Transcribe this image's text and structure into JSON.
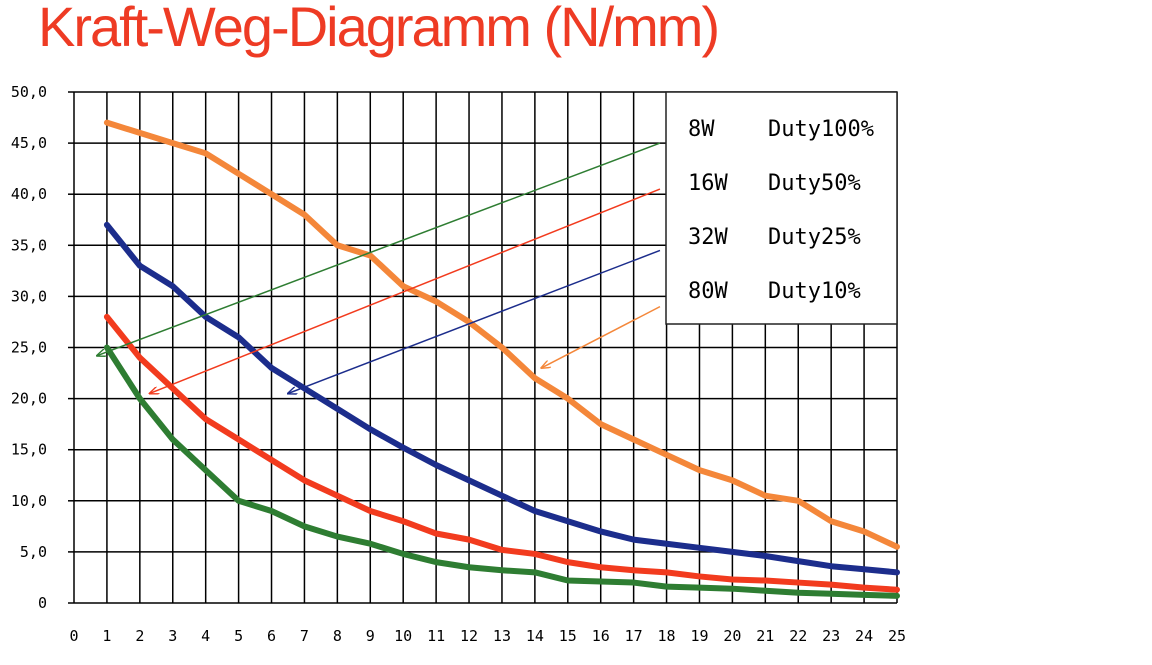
{
  "colors": {
    "title": "#ee3b24",
    "grid": "#000000",
    "series": [
      "#f4873a",
      "#1c2d8c",
      "#f23b1e",
      "#2e7d32"
    ],
    "arrows": [
      "#2e7d32",
      "#f23b1e",
      "#1c2d8c",
      "#f4873a"
    ]
  },
  "chart_data": {
    "type": "line",
    "title": "Kraft-Weg-Diagramm (N/mm)",
    "xlabel": "",
    "ylabel": "",
    "xlim": [
      0,
      25
    ],
    "ylim": [
      0,
      50
    ],
    "grid": true,
    "legend_position": "top-right",
    "x_ticks": [
      "0",
      "1",
      "2",
      "3",
      "4",
      "5",
      "6",
      "7",
      "8",
      "9",
      "10",
      "11",
      "12",
      "13",
      "14",
      "15",
      "16",
      "17",
      "18",
      "19",
      "20",
      "21",
      "22",
      "23",
      "24",
      "25"
    ],
    "y_ticks": [
      "0",
      "5,0",
      "10,0",
      "15,0",
      "20,0",
      "25,0",
      "30,0",
      "35,0",
      "40,0",
      "45,0",
      "50,0"
    ],
    "x": [
      1,
      2,
      3,
      4,
      5,
      6,
      7,
      8,
      9,
      10,
      11,
      12,
      13,
      14,
      15,
      16,
      17,
      18,
      19,
      20,
      21,
      22,
      23,
      24,
      25
    ],
    "legend": [
      {
        "power": "8W",
        "duty": "Duty100%"
      },
      {
        "power": "16W",
        "duty": "Duty50%"
      },
      {
        "power": "32W",
        "duty": "Duty25%"
      },
      {
        "power": "80W",
        "duty": "Duty10%"
      }
    ],
    "series": [
      {
        "values": [
          47,
          46,
          45,
          44,
          42,
          40,
          38,
          35,
          34,
          31,
          29.5,
          27.5,
          25,
          22,
          20,
          17.5,
          16,
          14.5,
          13,
          12,
          10.5,
          10,
          8,
          7,
          5.5
        ]
      },
      {
        "values": [
          37,
          33,
          31,
          28,
          26,
          23,
          21,
          19,
          17,
          15.2,
          13.5,
          12,
          10.5,
          9,
          8,
          7,
          6.2,
          5.8,
          5.4,
          5,
          4.6,
          4.1,
          3.6,
          3.3,
          3
        ]
      },
      {
        "values": [
          28,
          24,
          21,
          18,
          16,
          14,
          12,
          10.5,
          9,
          8,
          6.8,
          6.2,
          5.2,
          4.8,
          4,
          3.5,
          3.2,
          3,
          2.6,
          2.3,
          2.2,
          2,
          1.8,
          1.5,
          1.3
        ]
      },
      {
        "values": [
          25,
          20,
          16,
          13,
          10,
          9,
          7.5,
          6.5,
          5.8,
          4.8,
          4,
          3.5,
          3.2,
          3,
          2.2,
          2.1,
          2,
          1.6,
          1.5,
          1.4,
          1.2,
          1,
          0.9,
          0.8,
          0.7
        ]
      }
    ],
    "annotations": [
      {
        "from": [
          17.8,
          45
        ],
        "to": [
          0.7,
          24.2
        ]
      },
      {
        "from": [
          17.8,
          40.5
        ],
        "to": [
          2.3,
          20.5
        ]
      },
      {
        "from": [
          17.8,
          34.5
        ],
        "to": [
          6.5,
          20.5
        ]
      },
      {
        "from": [
          17.8,
          29
        ],
        "to": [
          14.2,
          23
        ]
      }
    ]
  }
}
